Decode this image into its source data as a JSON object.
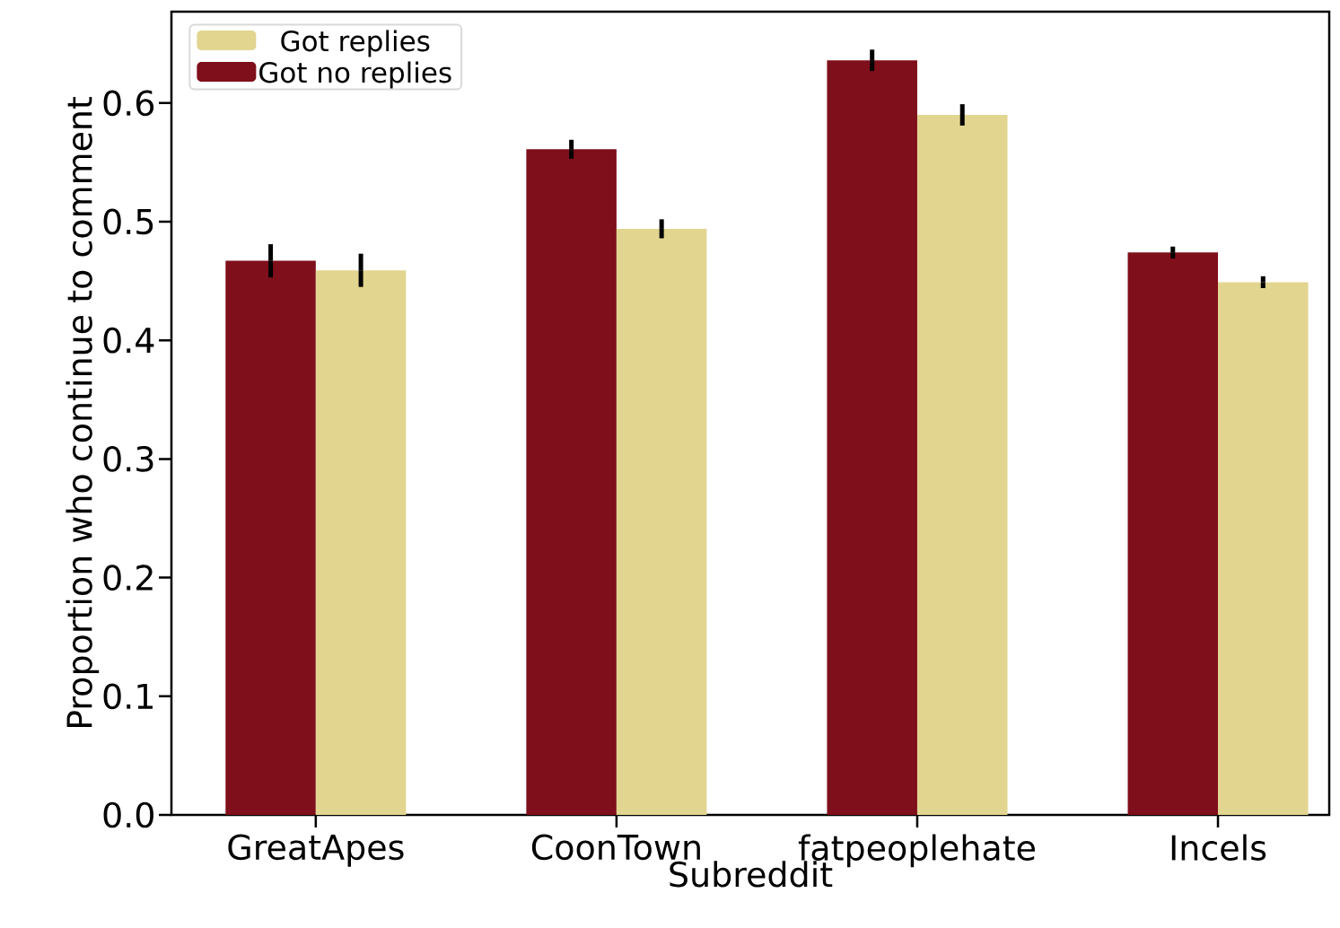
{
  "chart_data": {
    "type": "bar",
    "xlabel": "Subreddit",
    "ylabel": "Proportion who continue to comment",
    "categories": [
      "GreatApes",
      "CoonTown",
      "fatpeoplehate",
      "Incels"
    ],
    "series": [
      {
        "name": "Got no replies",
        "color": "#7f0f1b",
        "values": [
          0.467,
          0.561,
          0.636,
          0.474
        ],
        "errors": [
          0.014,
          0.008,
          0.009,
          0.005
        ]
      },
      {
        "name": "Got replies",
        "color": "#e2d590",
        "values": [
          0.459,
          0.494,
          0.59,
          0.449
        ],
        "errors": [
          0.014,
          0.008,
          0.009,
          0.005
        ]
      }
    ],
    "ylim": [
      0,
      0.677
    ],
    "yticks": [
      {
        "value": 0,
        "label": "0.0"
      },
      0.1,
      0.2,
      0.3,
      0.4,
      0.5,
      0.6
    ],
    "legend": "top left"
  }
}
